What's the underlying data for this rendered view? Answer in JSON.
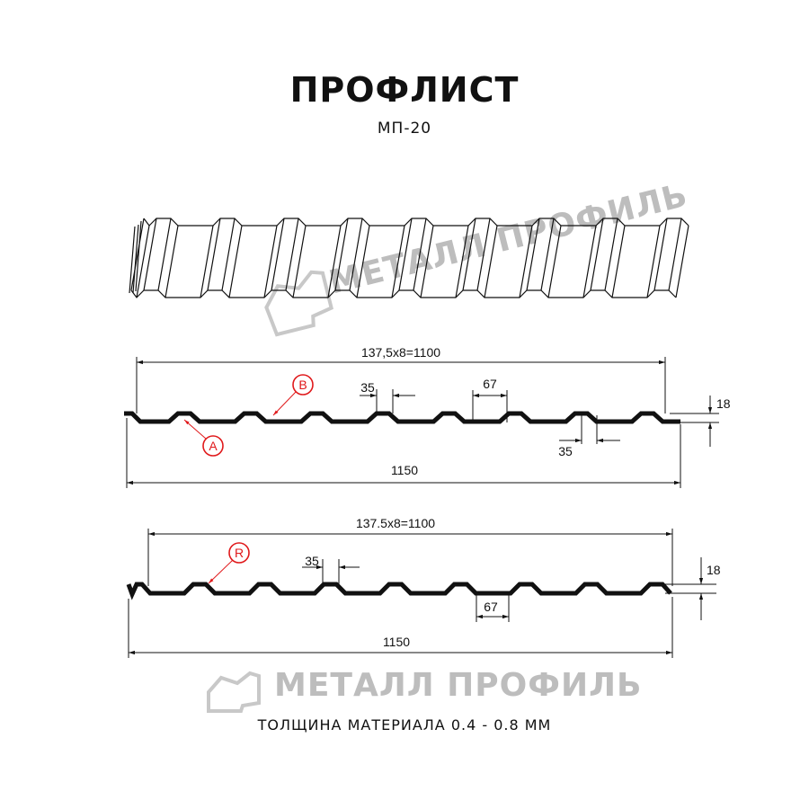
{
  "header": {
    "title": "ПРОФЛИСТ",
    "subtitle": "МП-20"
  },
  "watermark": {
    "text": "МЕТАЛЛ ПРОФИЛЬ",
    "color": "#bdbdbd"
  },
  "profile_a": {
    "pitch_label": "137,5x8=1100",
    "total_width_label": "1150",
    "ridge_width_label": "35",
    "valley_width_label": "67",
    "bottom_ridge_label": "35",
    "height_label": "18",
    "marker_a": "A",
    "marker_b": "B"
  },
  "profile_r": {
    "pitch_label": "137.5x8=1100",
    "total_width_label": "1150",
    "ridge_width_label": "35",
    "valley_width_label": "67",
    "height_label": "18",
    "marker_r": "R"
  },
  "footer": {
    "thickness": "ТОЛЩИНА МАТЕРИАЛА 0.4 - 0.8 ММ"
  },
  "colors": {
    "line": "#111111",
    "marker": "#e0191b"
  }
}
